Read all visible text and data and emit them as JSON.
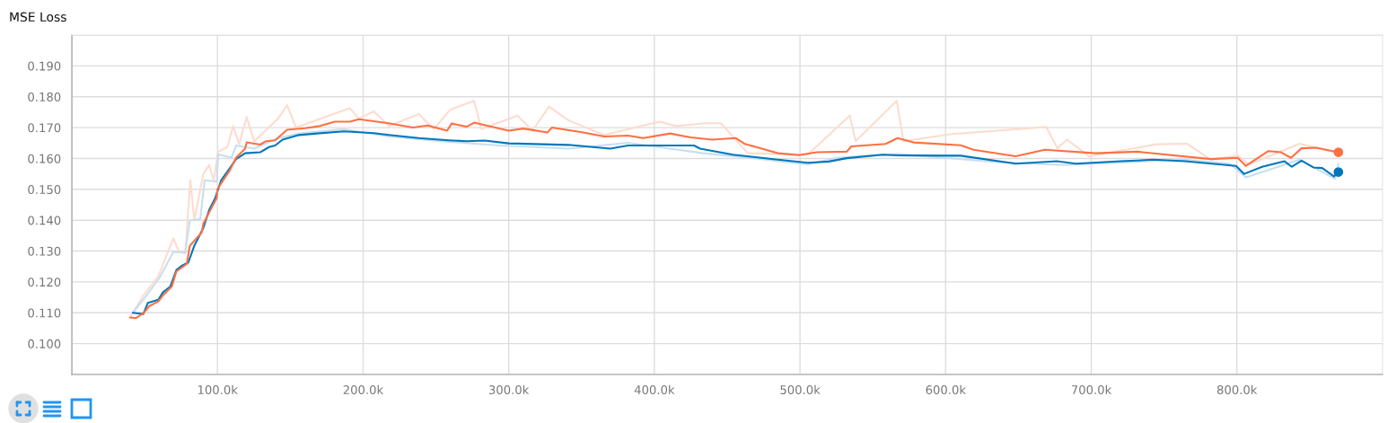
{
  "chart_data": {
    "type": "line",
    "title": "MSE Loss",
    "xlim": [
      0,
      900000
    ],
    "ylim": [
      0.09,
      0.2
    ],
    "xticks": [
      {
        "value": 0,
        "label": null
      },
      {
        "value": 100000,
        "label": "100.0k"
      },
      {
        "value": 200000,
        "label": "200.0k"
      },
      {
        "value": 300000,
        "label": "300.0k"
      },
      {
        "value": 400000,
        "label": "400.0k"
      },
      {
        "value": 500000,
        "label": "500.0k"
      },
      {
        "value": 600000,
        "label": "600.0k"
      },
      {
        "value": 700000,
        "label": "700.0k"
      },
      {
        "value": 800000,
        "label": "800.0k"
      }
    ],
    "yticks": [
      {
        "value": 0.09,
        "label": null
      },
      {
        "value": 0.1,
        "label": "0.100"
      },
      {
        "value": 0.11,
        "label": "0.110"
      },
      {
        "value": 0.12,
        "label": "0.120"
      },
      {
        "value": 0.13,
        "label": "0.130"
      },
      {
        "value": 0.14,
        "label": "0.140"
      },
      {
        "value": 0.15,
        "label": "0.150"
      },
      {
        "value": 0.16,
        "label": "0.160"
      },
      {
        "value": 0.17,
        "label": "0.170"
      },
      {
        "value": 0.18,
        "label": "0.180"
      },
      {
        "value": 0.19,
        "label": "0.190"
      },
      {
        "value": 0.2,
        "label": null
      }
    ],
    "grid": true,
    "series": [
      {
        "color": "#fddccf",
        "x": [
          39900,
          49100,
          59400,
          69700,
          73800,
          77900,
          81400,
          84100,
          90300,
          94300,
          97400,
          100500,
          106700,
          110800,
          114900,
          120000,
          125200,
          141600,
          147800,
          154000,
          176600,
          190900,
          197100,
          207400,
          217600,
          238200,
          248500,
          259800,
          276200,
          281300,
          306000,
          316300,
          327600,
          340900,
          365600,
          403600,
          414900,
          435500,
          445700,
          464200,
          505400,
          534200,
          538200,
          566400,
          571100,
          604300,
          669100,
          676800,
          683300,
          698700,
          744800,
          765600,
          782200,
          800600,
          808300,
          843200,
          869700
        ],
        "values": [
          0.1085,
          0.1156,
          0.1219,
          0.1341,
          0.1297,
          0.1292,
          0.153,
          0.1399,
          0.155,
          0.1579,
          0.153,
          0.1622,
          0.1637,
          0.1705,
          0.1647,
          0.1734,
          0.1656,
          0.1729,
          0.1773,
          0.17,
          0.1739,
          0.1763,
          0.1729,
          0.1753,
          0.1705,
          0.1744,
          0.1695,
          0.1758,
          0.1787,
          0.1695,
          0.1739,
          0.169,
          0.1768,
          0.1724,
          0.1676,
          0.1719,
          0.1705,
          0.1714,
          0.1714,
          0.1617,
          0.1613,
          0.1739,
          0.1656,
          0.1787,
          0.1656,
          0.1679,
          0.1702,
          0.1633,
          0.1661,
          0.1607,
          0.1646,
          0.1648,
          0.1596,
          0.161,
          0.1581,
          0.1648,
          0.1617
        ]
      },
      {
        "color": "#c6dff0",
        "x": [
          41900,
          51200,
          60400,
          69700,
          77900,
          81000,
          88200,
          91200,
          99500,
          100500,
          109700,
          112800,
          125200,
          141600,
          156000,
          186800,
          217600,
          258800,
          293700,
          340900,
          382000,
          433400,
          464200,
          505400,
          525900,
          567000,
          632900,
          681000,
          764300,
          795100,
          806200,
          843200,
          867300,
          869700
        ],
        "values": [
          0.11,
          0.1156,
          0.1215,
          0.1297,
          0.1295,
          0.1399,
          0.1404,
          0.153,
          0.1525,
          0.1613,
          0.1603,
          0.1642,
          0.1632,
          0.1666,
          0.1681,
          0.1695,
          0.1671,
          0.1654,
          0.1642,
          0.1632,
          0.1651,
          0.1617,
          0.1603,
          0.158,
          0.1603,
          0.1615,
          0.1589,
          0.1579,
          0.1596,
          0.1583,
          0.1539,
          0.1596,
          0.1534,
          0.1583
        ]
      },
      {
        "color": "#0077bb",
        "x": [
          41900,
          49100,
          52200,
          59400,
          62500,
          67600,
          71800,
          75800,
          80000,
          84100,
          90300,
          94300,
          98500,
          102600,
          107800,
          112800,
          119000,
          129300,
          135400,
          139600,
          144700,
          156000,
          168300,
          186800,
          207400,
          217600,
          238200,
          258800,
          271100,
          283400,
          299900,
          340900,
          369700,
          382000,
          427200,
          431400,
          454000,
          484800,
          505400,
          519700,
          532100,
          556700,
          567000,
          610400,
          648100,
          676400,
          689400,
          720200,
          742700,
          764300,
          799400,
          805000,
          817300,
          832700,
          837700,
          844400,
          852500,
          858600,
          866600,
          869700
        ],
        "values": [
          0.11,
          0.1096,
          0.1132,
          0.1142,
          0.1166,
          0.1185,
          0.1239,
          0.1253,
          0.1263,
          0.1317,
          0.1375,
          0.1433,
          0.1472,
          0.153,
          0.1564,
          0.1598,
          0.1617,
          0.162,
          0.1637,
          0.1642,
          0.1661,
          0.1676,
          0.1681,
          0.1688,
          0.1682,
          0.1676,
          0.1666,
          0.1659,
          0.1656,
          0.1658,
          0.1649,
          0.1644,
          0.1632,
          0.1642,
          0.1642,
          0.1632,
          0.1612,
          0.1596,
          0.1586,
          0.159,
          0.1601,
          0.1612,
          0.161,
          0.1609,
          0.1583,
          0.1591,
          0.1583,
          0.1591,
          0.1596,
          0.1591,
          0.1576,
          0.155,
          0.1573,
          0.1591,
          0.1573,
          0.1593,
          0.1571,
          0.1569,
          0.1542,
          0.1556
        ]
      },
      {
        "color": "#ff7043",
        "x": [
          39900,
          44000,
          49100,
          53300,
          59400,
          62500,
          68700,
          71800,
          78900,
          81000,
          89200,
          90300,
          99500,
          100000,
          108800,
          112800,
          119000,
          120100,
          129300,
          133400,
          139600,
          147800,
          160100,
          170400,
          180600,
          190900,
          197100,
          217600,
          234100,
          244400,
          257700,
          260800,
          271100,
          276200,
          299900,
          310100,
          326600,
          329600,
          351200,
          365600,
          382000,
          392400,
          410800,
          425200,
          439600,
          456000,
          462200,
          484800,
          499200,
          511500,
          532100,
          535200,
          558800,
          567000,
          578000,
          610400,
          619100,
          648100,
          668100,
          703200,
          731600,
          782100,
          800600,
          806200,
          821600,
          830300,
          837100,
          844400,
          854300,
          869700
        ],
        "values": [
          0.1085,
          0.1083,
          0.1098,
          0.1122,
          0.1137,
          0.1156,
          0.1185,
          0.1234,
          0.1258,
          0.1317,
          0.136,
          0.1389,
          0.1472,
          0.1501,
          0.1564,
          0.1603,
          0.1632,
          0.1652,
          0.1645,
          0.1656,
          0.1659,
          0.1693,
          0.1698,
          0.1705,
          0.1719,
          0.1719,
          0.1727,
          0.1714,
          0.17,
          0.1707,
          0.169,
          0.1713,
          0.1703,
          0.1716,
          0.169,
          0.1697,
          0.1684,
          0.17,
          0.1684,
          0.1671,
          0.1674,
          0.1666,
          0.1681,
          0.1668,
          0.1661,
          0.1666,
          0.1647,
          0.1617,
          0.1611,
          0.162,
          0.1622,
          0.1639,
          0.1647,
          0.1666,
          0.1652,
          0.1643,
          0.1628,
          0.1607,
          0.1628,
          0.1617,
          0.1622,
          0.1598,
          0.1602,
          0.1576,
          0.1624,
          0.162,
          0.1602,
          0.1633,
          0.1635,
          0.162
        ]
      },
      {
        "type": "scatter",
        "color": "#0077bb",
        "x": [
          869700
        ],
        "values": [
          0.1556
        ]
      },
      {
        "type": "scatter",
        "color": "#ff7043",
        "x": [
          869700
        ],
        "values": [
          0.162
        ]
      }
    ]
  }
}
